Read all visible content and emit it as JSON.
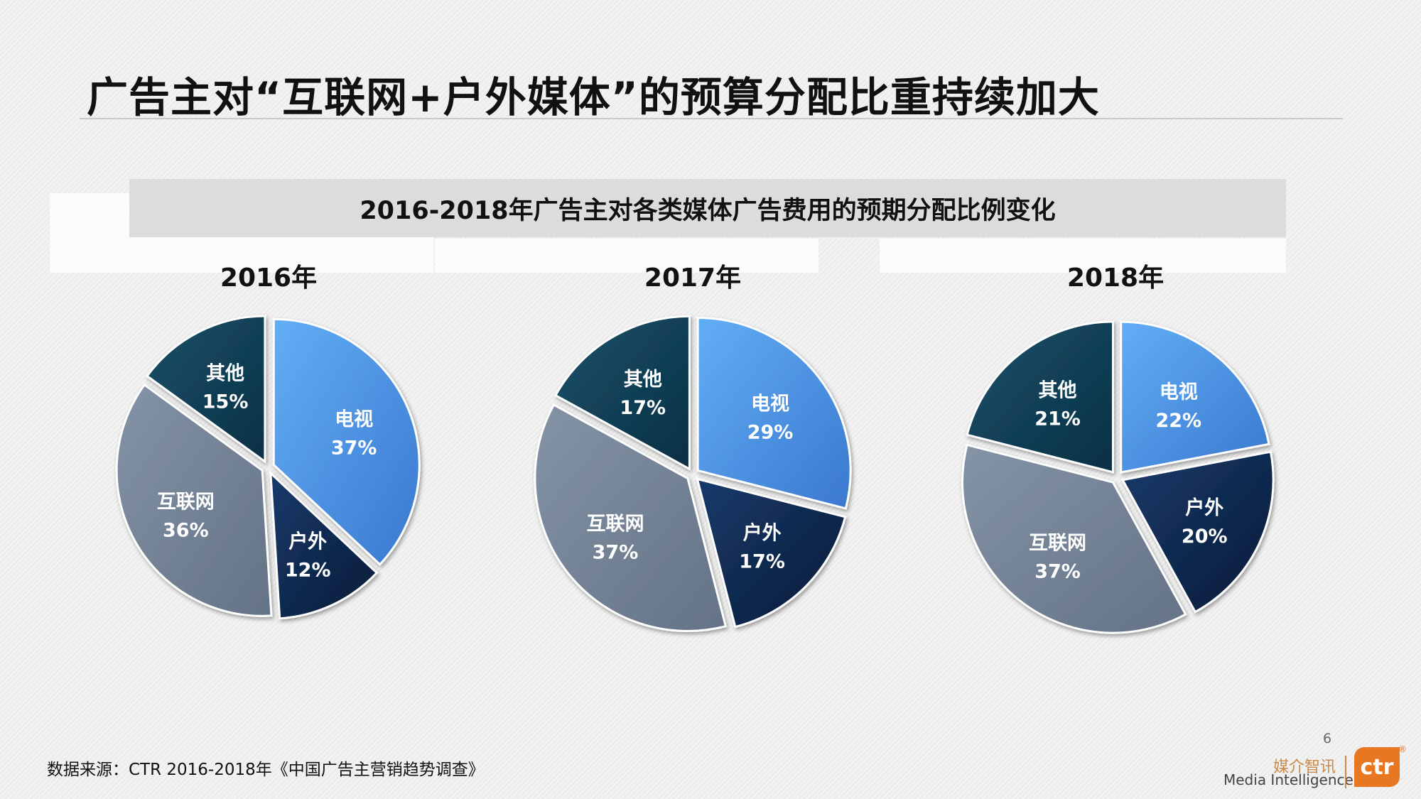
{
  "title": "广告主对“互联网+户外媒体”的预算分配比重持续加大",
  "subtitle": "2016-2018年广告主对各类媒体广告费用的预期分配比例变化",
  "source": "数据来源：CTR 2016-2018年《中国广告主营销趋势调查》",
  "page_number": "6",
  "logo": {
    "cn": "媒介智讯",
    "en": "Media Intelligence",
    "mark": "ctr",
    "reg": "®"
  },
  "colors": {
    "电视": "#4a8fe0",
    "户外": "#0c2447",
    "互联网": "#6f7d90",
    "其他": "#103c50"
  },
  "chart_data": [
    {
      "type": "pie",
      "title": "2016年",
      "categories": [
        "电视",
        "户外",
        "互联网",
        "其他"
      ],
      "values": [
        37,
        12,
        36,
        15
      ],
      "unit": "%"
    },
    {
      "type": "pie",
      "title": "2017年",
      "categories": [
        "电视",
        "户外",
        "互联网",
        "其他"
      ],
      "values": [
        29,
        17,
        37,
        17
      ],
      "unit": "%"
    },
    {
      "type": "pie",
      "title": "2018年",
      "categories": [
        "电视",
        "户外",
        "互联网",
        "其他"
      ],
      "values": [
        22,
        20,
        37,
        21
      ],
      "unit": "%"
    }
  ]
}
